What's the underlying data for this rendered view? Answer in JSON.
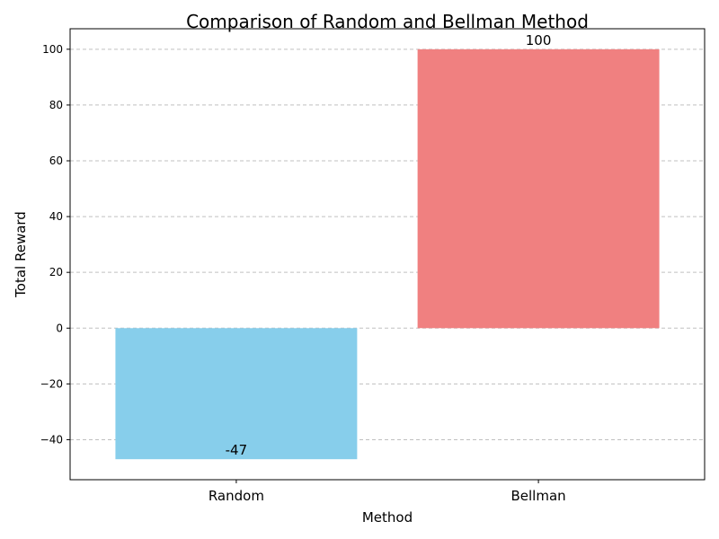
{
  "chart_data": {
    "type": "bar",
    "title": "Comparison of Random and Bellman Method",
    "xlabel": "Method",
    "ylabel": "Total Reward",
    "categories": [
      "Random",
      "Bellman"
    ],
    "values": [
      -47,
      100
    ],
    "data_labels": [
      "-47",
      "100"
    ],
    "colors": [
      "#87ceeb",
      "#f08080"
    ],
    "ylim": [
      -54.35,
      107.35
    ],
    "yticks": [
      -40,
      -20,
      0,
      20,
      40,
      60,
      80,
      100
    ],
    "ytick_labels": [
      "−40",
      "−20",
      "0",
      "20",
      "40",
      "60",
      "80",
      "100"
    ],
    "grid": "y-dashed",
    "legend": "none"
  }
}
